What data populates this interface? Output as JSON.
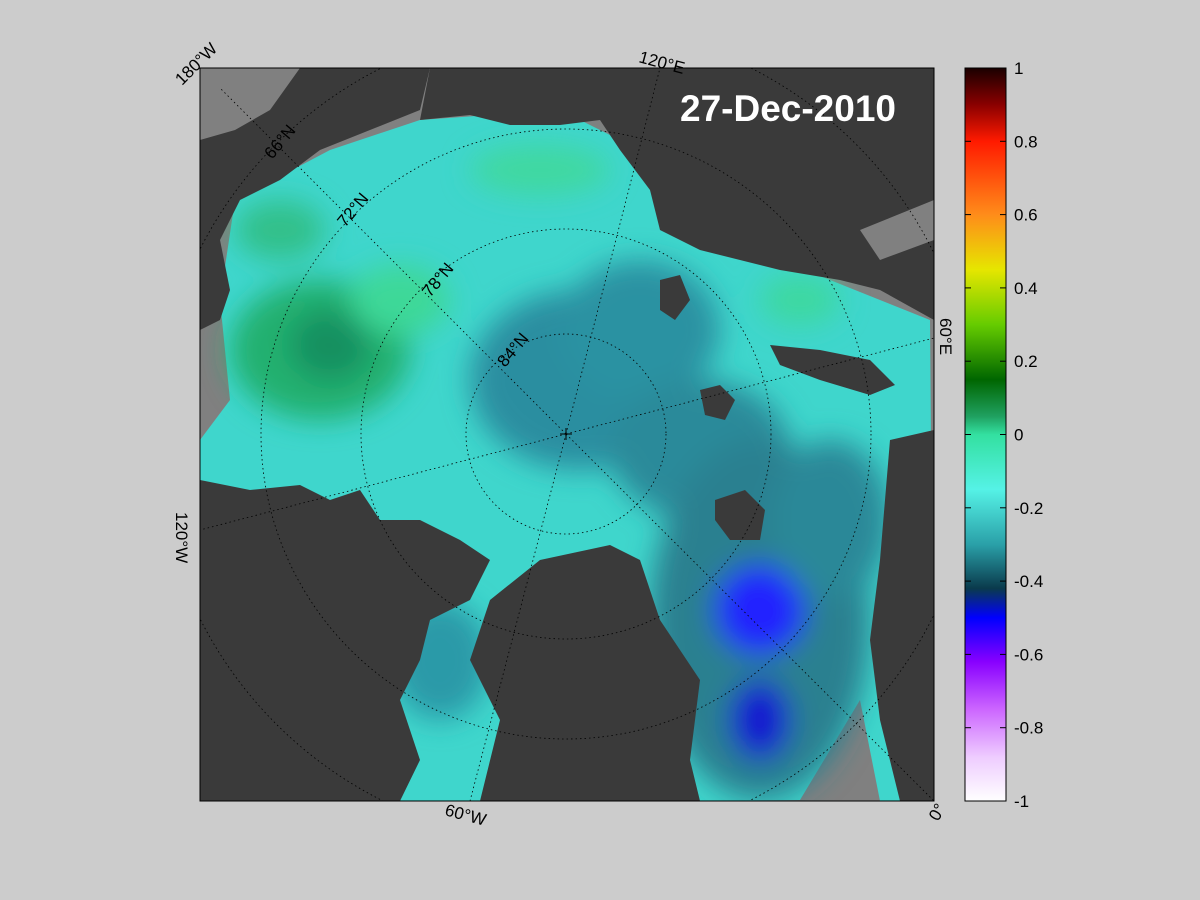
{
  "map": {
    "date_label": "27-Dec-2010",
    "longitude_labels": [
      "180°W",
      "120°E",
      "60°E",
      "0°",
      "60°W",
      "120°W"
    ],
    "latitude_labels": [
      "66°N",
      "72°N",
      "78°N",
      "84°N"
    ],
    "colors": {
      "background": "#cccccc",
      "land": "#3a3a3a",
      "land_outside": "#808080",
      "ocean_base": "#3fd6cc"
    }
  },
  "colorbar": {
    "min": -1,
    "max": 1,
    "tick_labels": [
      "1",
      "0.8",
      "0.6",
      "0.4",
      "0.2",
      "0",
      "-0.2",
      "-0.4",
      "-0.6",
      "-0.8",
      "-1"
    ],
    "stops": [
      {
        "value": 1.0,
        "color": "#1a0000"
      },
      {
        "value": 0.9,
        "color": "#8a0000"
      },
      {
        "value": 0.8,
        "color": "#ff1a00"
      },
      {
        "value": 0.6,
        "color": "#ff8c1a"
      },
      {
        "value": 0.45,
        "color": "#e6e600"
      },
      {
        "value": 0.3,
        "color": "#66cc00"
      },
      {
        "value": 0.15,
        "color": "#006600"
      },
      {
        "value": 0.05,
        "color": "#1fa060"
      },
      {
        "value": 0.0,
        "color": "#33e0a0"
      },
      {
        "value": -0.15,
        "color": "#55f2e6"
      },
      {
        "value": -0.3,
        "color": "#2aa0a8"
      },
      {
        "value": -0.42,
        "color": "#0a3a4c"
      },
      {
        "value": -0.5,
        "color": "#0000ff"
      },
      {
        "value": -0.62,
        "color": "#8800ff"
      },
      {
        "value": -0.75,
        "color": "#cc66ff"
      },
      {
        "value": -0.88,
        "color": "#eeccff"
      },
      {
        "value": -1.0,
        "color": "#ffffff"
      }
    ]
  }
}
